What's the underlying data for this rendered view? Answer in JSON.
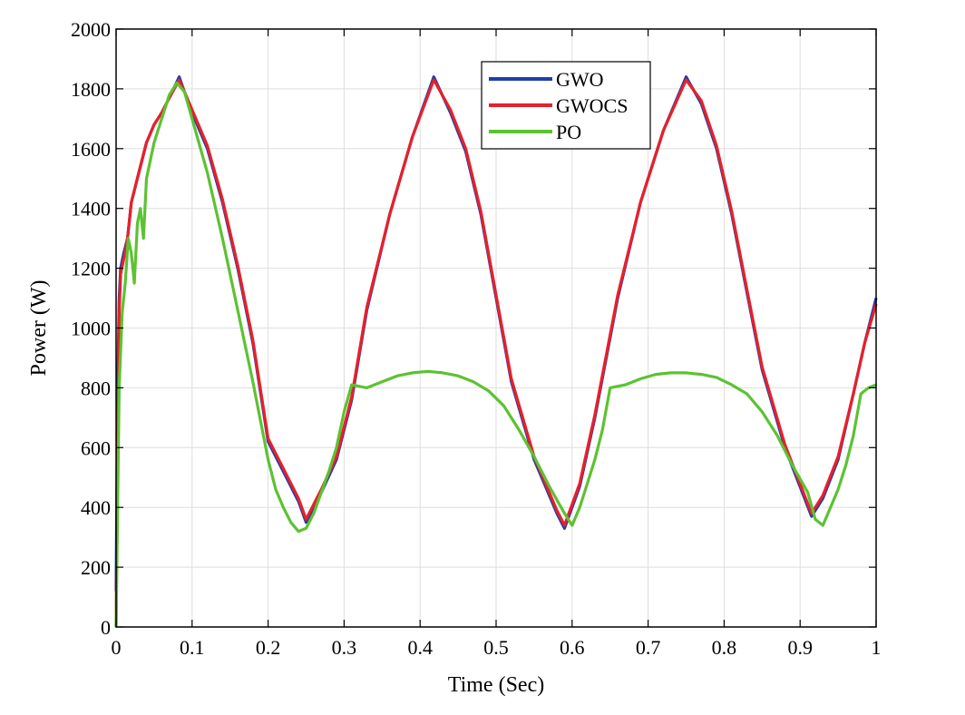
{
  "chart_data": {
    "type": "line",
    "xlabel": "Time (Sec)",
    "ylabel": "Power (W)",
    "xlim": [
      0,
      1
    ],
    "ylim": [
      0,
      2000
    ],
    "x_ticks": [
      0,
      0.1,
      0.2,
      0.3,
      0.4,
      0.5,
      0.6,
      0.7,
      0.8,
      0.9,
      1
    ],
    "x_tick_labels": [
      "0",
      "0.1",
      "0.2",
      "0.3",
      "0.4",
      "0.5",
      "0.6",
      "0.7",
      "0.8",
      "0.9",
      "1"
    ],
    "y_ticks": [
      0,
      200,
      400,
      600,
      800,
      1000,
      1200,
      1400,
      1600,
      1800,
      2000
    ],
    "y_tick_labels": [
      "0",
      "200",
      "400",
      "600",
      "800",
      "1000",
      "1200",
      "1400",
      "1600",
      "1800",
      "2000"
    ],
    "grid": true,
    "legend_position": "top-center",
    "series": [
      {
        "name": "GWO",
        "color": "#1f3fa8",
        "x": [
          0,
          0.002,
          0.004,
          0.006,
          0.01,
          0.015,
          0.02,
          0.03,
          0.04,
          0.05,
          0.06,
          0.07,
          0.083,
          0.09,
          0.1,
          0.12,
          0.14,
          0.16,
          0.18,
          0.2,
          0.22,
          0.24,
          0.25,
          0.27,
          0.29,
          0.31,
          0.33,
          0.36,
          0.39,
          0.418,
          0.44,
          0.46,
          0.48,
          0.5,
          0.52,
          0.55,
          0.58,
          0.59,
          0.61,
          0.63,
          0.66,
          0.69,
          0.72,
          0.75,
          0.77,
          0.79,
          0.81,
          0.83,
          0.85,
          0.88,
          0.915,
          0.93,
          0.95,
          0.97,
          0.985,
          1.0
        ],
        "y": [
          120,
          800,
          1100,
          1200,
          1250,
          1300,
          1420,
          1520,
          1620,
          1680,
          1720,
          1770,
          1840,
          1790,
          1720,
          1600,
          1420,
          1200,
          950,
          620,
          520,
          420,
          350,
          450,
          560,
          760,
          1060,
          1380,
          1640,
          1840,
          1720,
          1590,
          1380,
          1100,
          820,
          560,
          380,
          330,
          470,
          700,
          1100,
          1420,
          1660,
          1840,
          1750,
          1600,
          1380,
          1120,
          860,
          600,
          370,
          430,
          560,
          780,
          950,
          1100
        ]
      },
      {
        "name": "GWOCS",
        "color": "#e8202a",
        "x": [
          0,
          0.002,
          0.004,
          0.006,
          0.01,
          0.015,
          0.02,
          0.03,
          0.04,
          0.05,
          0.06,
          0.07,
          0.083,
          0.09,
          0.1,
          0.12,
          0.14,
          0.16,
          0.18,
          0.2,
          0.22,
          0.24,
          0.25,
          0.27,
          0.29,
          0.31,
          0.33,
          0.36,
          0.39,
          0.418,
          0.44,
          0.46,
          0.48,
          0.5,
          0.52,
          0.55,
          0.58,
          0.59,
          0.61,
          0.63,
          0.66,
          0.69,
          0.72,
          0.75,
          0.77,
          0.79,
          0.81,
          0.83,
          0.85,
          0.88,
          0.915,
          0.93,
          0.95,
          0.97,
          0.985,
          1.0
        ],
        "y": [
          0,
          600,
          1050,
          1180,
          1230,
          1300,
          1420,
          1520,
          1620,
          1680,
          1720,
          1770,
          1830,
          1790,
          1730,
          1610,
          1430,
          1210,
          960,
          630,
          530,
          430,
          360,
          460,
          570,
          770,
          1070,
          1380,
          1640,
          1830,
          1730,
          1600,
          1390,
          1110,
          830,
          570,
          390,
          340,
          480,
          710,
          1110,
          1420,
          1660,
          1830,
          1760,
          1610,
          1390,
          1130,
          870,
          610,
          380,
          440,
          570,
          780,
          950,
          1080
        ]
      },
      {
        "name": "PO",
        "color": "#5cc232",
        "x": [
          0,
          0.004,
          0.008,
          0.012,
          0.016,
          0.02,
          0.024,
          0.028,
          0.032,
          0.036,
          0.04,
          0.045,
          0.05,
          0.06,
          0.07,
          0.08,
          0.09,
          0.1,
          0.12,
          0.14,
          0.16,
          0.18,
          0.2,
          0.21,
          0.22,
          0.23,
          0.24,
          0.25,
          0.26,
          0.27,
          0.28,
          0.29,
          0.3,
          0.31,
          0.33,
          0.35,
          0.37,
          0.39,
          0.41,
          0.43,
          0.45,
          0.47,
          0.49,
          0.51,
          0.53,
          0.55,
          0.57,
          0.59,
          0.6,
          0.61,
          0.62,
          0.63,
          0.64,
          0.65,
          0.67,
          0.69,
          0.71,
          0.73,
          0.75,
          0.77,
          0.79,
          0.81,
          0.83,
          0.85,
          0.87,
          0.89,
          0.91,
          0.92,
          0.93,
          0.94,
          0.95,
          0.96,
          0.97,
          0.98,
          0.99,
          1.0
        ],
        "y": [
          0,
          800,
          1050,
          1150,
          1300,
          1250,
          1150,
          1350,
          1400,
          1300,
          1500,
          1560,
          1620,
          1700,
          1780,
          1820,
          1790,
          1700,
          1520,
          1300,
          1060,
          820,
          560,
          460,
          400,
          350,
          320,
          330,
          380,
          450,
          520,
          600,
          720,
          810,
          800,
          820,
          840,
          850,
          855,
          850,
          840,
          820,
          790,
          740,
          660,
          570,
          470,
          380,
          340,
          400,
          480,
          560,
          660,
          800,
          810,
          830,
          845,
          850,
          850,
          845,
          835,
          810,
          780,
          720,
          640,
          540,
          450,
          360,
          340,
          400,
          460,
          540,
          640,
          780,
          800,
          810
        ]
      }
    ]
  }
}
